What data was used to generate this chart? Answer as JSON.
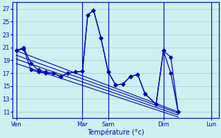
{
  "xlabel": "Température (°c)",
  "bg_color": "#cff0f0",
  "grid_color": "#a0d8d8",
  "line_color": "#0000bb",
  "y_ticks": [
    11,
    13,
    15,
    17,
    19,
    21,
    23,
    25,
    27
  ],
  "ylim": [
    10.0,
    28.0
  ],
  "xlim": [
    0,
    28
  ],
  "x_day_labels": [
    "Ven",
    "Mar",
    "Sam",
    "Dim",
    "Lun"
  ],
  "x_day_positions": [
    0.5,
    9.5,
    13.0,
    20.5,
    27.0
  ],
  "x_vlines": [
    0.5,
    9.5,
    13.0,
    20.5,
    27.0
  ],
  "series1": {
    "x": [
      0.5,
      1.5,
      2.5,
      3.5,
      4.5,
      5.5,
      6.5,
      7.5,
      8.5,
      9.5,
      10.2,
      11.0,
      12.0,
      13.0,
      14.0,
      15.0,
      16.0,
      17.0,
      18.0,
      19.5,
      20.5,
      21.5,
      22.5
    ],
    "y": [
      20.5,
      20.8,
      17.5,
      17.2,
      17.0,
      17.0,
      16.5,
      17.0,
      17.2,
      17.3,
      26.0,
      26.8,
      22.5,
      17.2,
      15.2,
      15.3,
      16.5,
      16.8,
      13.8,
      12.2,
      20.5,
      17.0,
      11.0
    ]
  },
  "series2": {
    "x": [
      0.5,
      1.5,
      2.5,
      3.5,
      4.5,
      5.5,
      6.5,
      7.5,
      8.5,
      9.5,
      10.2,
      11.0,
      12.0,
      13.0,
      14.0,
      15.0,
      16.0,
      17.0,
      18.0,
      19.5,
      20.5,
      21.5,
      22.5
    ],
    "y": [
      20.5,
      21.0,
      18.5,
      17.5,
      17.2,
      17.0,
      16.5,
      17.0,
      17.2,
      17.3,
      26.0,
      26.8,
      22.5,
      17.2,
      15.2,
      15.3,
      16.5,
      16.8,
      13.8,
      12.2,
      20.5,
      19.5,
      11.0
    ]
  },
  "trend_lines": [
    {
      "x_start": 0.5,
      "y_start": 20.5,
      "x_end": 22.5,
      "y_end": 11.0
    },
    {
      "x_start": 0.5,
      "y_start": 19.8,
      "x_end": 22.5,
      "y_end": 10.8
    },
    {
      "x_start": 0.5,
      "y_start": 19.2,
      "x_end": 22.5,
      "y_end": 10.5
    },
    {
      "x_start": 0.5,
      "y_start": 18.5,
      "x_end": 22.5,
      "y_end": 10.2
    }
  ]
}
